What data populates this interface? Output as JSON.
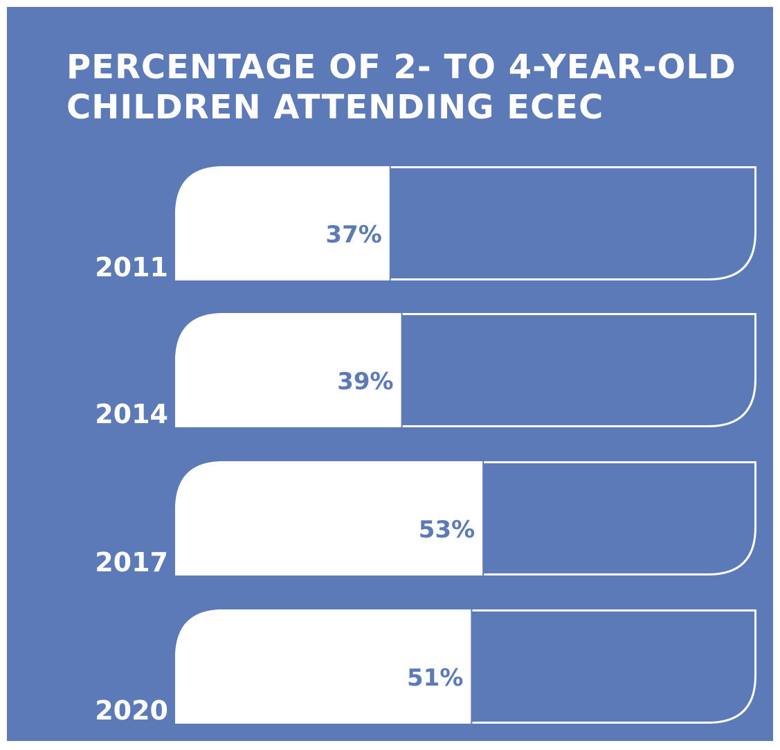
{
  "chart_data": {
    "type": "bar",
    "orientation": "horizontal",
    "title_lines": [
      "PERCENTAGE OF 2- TO 4-YEAR-OLD",
      "CHILDREN ATTENDING ECEC"
    ],
    "categories": [
      "2011",
      "2014",
      "2017",
      "2020"
    ],
    "values": [
      37,
      39,
      53,
      51
    ],
    "value_labels": [
      "37%",
      "39%",
      "53%",
      "51%"
    ],
    "xlim": [
      0,
      100
    ],
    "grid": false,
    "legend": "none"
  },
  "colors": {
    "background": "#5c7ab8",
    "bar_fill": "#ffffff",
    "text": "#ffffff"
  }
}
